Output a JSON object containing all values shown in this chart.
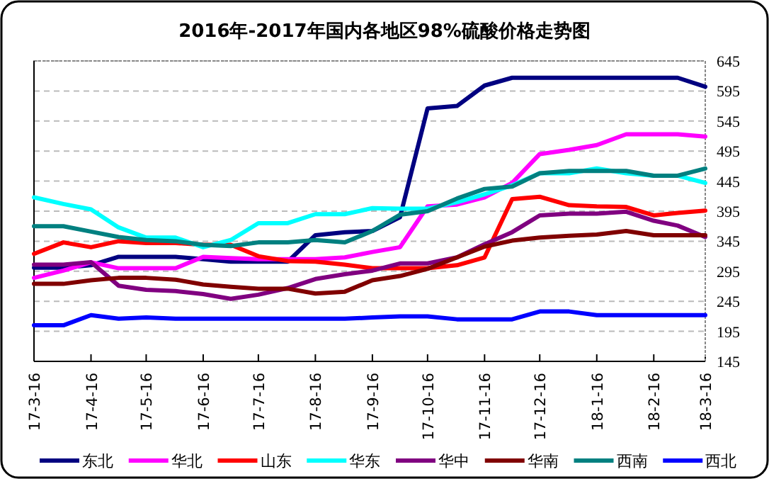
{
  "chart_data": {
    "type": "line",
    "title": "2016年-2017年国内各地区98%硫酸价格走势图",
    "x": [
      "2017-03-16",
      "2017-04-01",
      "2017-04-16",
      "2017-05-01",
      "2017-05-16",
      "2017-06-01",
      "2017-06-16",
      "2017-07-01",
      "2017-07-16",
      "2017-08-01",
      "2017-08-16",
      "2017-09-01",
      "2017-09-16",
      "2017-10-01",
      "2017-10-16",
      "2017-11-01",
      "2017-11-16",
      "2017-12-01",
      "2017-12-16",
      "2018-01-01",
      "2018-01-16",
      "2018-02-01",
      "2018-02-16",
      "2018-03-01",
      "2018-03-16"
    ],
    "series": [
      {
        "name": "东北",
        "color": "#000080",
        "values": [
          301,
          301,
          305,
          319,
          319,
          319,
          315,
          311,
          311,
          311,
          355,
          360,
          362,
          385,
          566,
          570,
          604,
          617,
          617,
          617,
          617,
          617,
          617,
          617,
          602
        ]
      },
      {
        "name": "华北",
        "color": "#ff00ff",
        "values": [
          284,
          296,
          310,
          300,
          300,
          300,
          319,
          317,
          315,
          315,
          315,
          318,
          327,
          335,
          403,
          406,
          418,
          442,
          490,
          497,
          505,
          523,
          523,
          523,
          519
        ]
      },
      {
        "name": "山东",
        "color": "#ff0000",
        "values": [
          324,
          343,
          335,
          345,
          342,
          342,
          339,
          339,
          320,
          312,
          311,
          306,
          300,
          300,
          300,
          305,
          318,
          415,
          419,
          405,
          403,
          402,
          388,
          392,
          396
        ]
      },
      {
        "name": "华东",
        "color": "#00ffff",
        "values": [
          418,
          407,
          398,
          368,
          351,
          351,
          335,
          347,
          375,
          375,
          390,
          390,
          400,
          399,
          399,
          410,
          423,
          438,
          458,
          458,
          466,
          458,
          454,
          454,
          442
        ]
      },
      {
        "name": "华中",
        "color": "#800080",
        "values": [
          306,
          306,
          310,
          271,
          264,
          262,
          257,
          249,
          256,
          267,
          282,
          290,
          296,
          308,
          308,
          318,
          340,
          360,
          388,
          391,
          391,
          394,
          379,
          371,
          352
        ]
      },
      {
        "name": "华南",
        "color": "#800000",
        "values": [
          274,
          274,
          280,
          284,
          284,
          281,
          273,
          269,
          266,
          266,
          258,
          261,
          280,
          287,
          299,
          318,
          336,
          346,
          351,
          354,
          356,
          362,
          355,
          355,
          355
        ]
      },
      {
        "name": "西南",
        "color": "#008080",
        "values": [
          370,
          370,
          361,
          352,
          347,
          345,
          339,
          337,
          343,
          343,
          347,
          343,
          362,
          389,
          395,
          416,
          432,
          436,
          458,
          462,
          462,
          462,
          454,
          454,
          466
        ]
      },
      {
        "name": "西北",
        "color": "#0000ff",
        "values": [
          205,
          205,
          222,
          216,
          218,
          216,
          216,
          216,
          216,
          216,
          216,
          216,
          218,
          220,
          220,
          215,
          215,
          215,
          228,
          228,
          222,
          222,
          222,
          222,
          222
        ]
      }
    ],
    "xlim": [
      "2017-03-16",
      "2018-03-16"
    ],
    "xticks": [
      {
        "value": "2017-03-16",
        "label": "17-3-16"
      },
      {
        "value": "2017-04-16",
        "label": "17-4-16"
      },
      {
        "value": "2017-05-16",
        "label": "17-5-16"
      },
      {
        "value": "2017-06-16",
        "label": "17-6-16"
      },
      {
        "value": "2017-07-16",
        "label": "17-7-16"
      },
      {
        "value": "2017-08-16",
        "label": "17-8-16"
      },
      {
        "value": "2017-09-16",
        "label": "17-9-16"
      },
      {
        "value": "2017-10-16",
        "label": "17-10-16"
      },
      {
        "value": "2017-11-16",
        "label": "17-11-16"
      },
      {
        "value": "2017-12-16",
        "label": "17-12-16"
      },
      {
        "value": "2018-01-16",
        "label": "18-1-16"
      },
      {
        "value": "2018-02-16",
        "label": "18-2-16"
      },
      {
        "value": "2018-03-16",
        "label": "18-3-16"
      }
    ],
    "ylim": [
      145,
      645
    ],
    "yticks": [
      145,
      195,
      245,
      295,
      345,
      395,
      445,
      495,
      545,
      595,
      645
    ],
    "grid": "y",
    "legend": "bottom",
    "marker": "none",
    "line_style": "solid"
  }
}
